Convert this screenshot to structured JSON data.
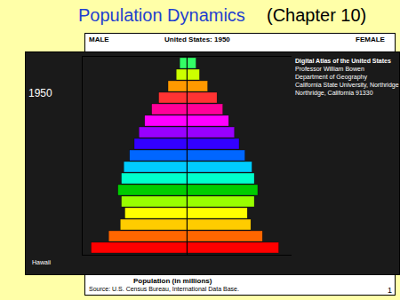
{
  "slide": {
    "title": "Population Dynamics",
    "subtitle": "(Chapter 10)",
    "page": "1",
    "map": {
      "title": "Digital Atlas of the United States",
      "credits": [
        "Professor William Bowen",
        "Department of Geography",
        "California State University, Northridge",
        "Northridge, California 91330"
      ],
      "year": "1950",
      "annotations": [
        "Hawaii"
      ]
    }
  },
  "chart_data": {
    "type": "pyramid",
    "title": "United States: 1950",
    "xlabel": "Population (in millions)",
    "annotations": [
      "Source: U.S. Census Bureau, International Data Base."
    ],
    "categories": [
      null,
      null,
      null,
      null,
      null,
      null,
      null,
      null,
      null,
      null,
      null,
      null,
      null,
      null,
      null,
      null,
      null
    ],
    "series": [
      {
        "name": "MALE",
        "values": [
          8.2,
          6.7,
          5.7,
          5.3,
          5.6,
          5.9,
          5.6,
          5.4,
          4.9,
          4.5,
          4.1,
          3.6,
          3.0,
          2.4,
          1.6,
          0.9,
          0.6
        ]
      },
      {
        "name": "FEMALE",
        "values": [
          7.9,
          6.5,
          5.5,
          5.2,
          5.8,
          6.1,
          5.8,
          5.6,
          5.0,
          4.5,
          4.1,
          3.6,
          3.1,
          2.6,
          1.8,
          1.1,
          0.8
        ]
      }
    ],
    "colors": [
      "#ff0000",
      "#ff6600",
      "#ffcc00",
      "#ffff00",
      "#99ff00",
      "#00cc00",
      "#00ffcc",
      "#00ccff",
      "#0066ff",
      "#3300ff",
      "#9900ff",
      "#ff00ff",
      "#ff0099",
      "#ff3333",
      "#ff9900",
      "#ccff00",
      "#33ff66"
    ],
    "xlim": [
      0,
      9
    ],
    "tick_labels": false
  }
}
